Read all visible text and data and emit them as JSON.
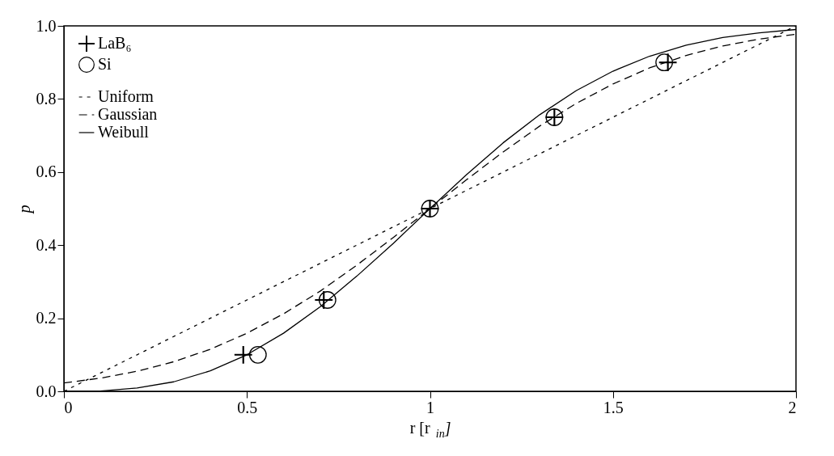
{
  "chart_data": {
    "type": "scatter",
    "xlabel": "r  [r$_{in}$]",
    "ylabel": "p",
    "xlim": [
      0,
      2
    ],
    "xticks": [
      0,
      0.5,
      1,
      1.5,
      2
    ],
    "ylim": [
      0,
      1
    ],
    "yticks": [
      {
        "value": 0,
        "label": "0.0"
      },
      {
        "value": 0.2,
        "label": "0.2"
      },
      {
        "value": 0.4,
        "label": "0.4"
      },
      {
        "value": 0.6,
        "label": "0.6"
      },
      {
        "value": 0.8,
        "label": "0.8"
      },
      {
        "value": 1,
        "label": "1.0"
      }
    ],
    "grid": false,
    "legend": "top left",
    "series": [
      {
        "name": "LaB₆",
        "marker": "cross",
        "color": "#000000",
        "x": [
          0.49,
          0.71,
          1.0,
          1.34,
          1.65
        ],
        "values": [
          0.1,
          0.25,
          0.5,
          0.75,
          0.9
        ]
      },
      {
        "name": "Si",
        "marker": "circle",
        "color": "#000000",
        "x": [
          0.53,
          0.72,
          1.0,
          1.34,
          1.64
        ],
        "values": [
          0.1,
          0.25,
          0.5,
          0.75,
          0.9
        ]
      },
      {
        "name": "Uniform",
        "type": "line",
        "line_style": "dotted",
        "color": "#000000",
        "x": [
          0,
          2
        ],
        "values": [
          0,
          1
        ]
      },
      {
        "name": "Gaussian",
        "type": "line",
        "line_style": "dashed",
        "color": "#000000",
        "x": [
          0,
          0.1,
          0.2,
          0.3,
          0.4,
          0.5,
          0.6,
          0.7,
          0.8,
          0.9,
          1.0,
          1.1,
          1.2,
          1.3,
          1.4,
          1.5,
          1.6,
          1.7,
          1.8,
          1.9,
          2.0
        ],
        "values": [
          0.023,
          0.036,
          0.055,
          0.081,
          0.115,
          0.159,
          0.212,
          0.274,
          0.345,
          0.421,
          0.5,
          0.579,
          0.655,
          0.726,
          0.788,
          0.841,
          0.885,
          0.919,
          0.945,
          0.964,
          0.977
        ]
      },
      {
        "name": "Weibull",
        "type": "line",
        "line_style": "solid",
        "color": "#000000",
        "x": [
          0,
          0.1,
          0.2,
          0.3,
          0.4,
          0.5,
          0.6,
          0.7,
          0.8,
          0.9,
          1.0,
          1.1,
          1.2,
          1.3,
          1.4,
          1.5,
          1.6,
          1.7,
          1.8,
          1.9,
          2.0
        ],
        "values": [
          0,
          0.001,
          0.009,
          0.026,
          0.056,
          0.1,
          0.159,
          0.231,
          0.315,
          0.405,
          0.5,
          0.593,
          0.68,
          0.757,
          0.823,
          0.876,
          0.917,
          0.947,
          0.968,
          0.981,
          0.99
        ]
      }
    ]
  }
}
